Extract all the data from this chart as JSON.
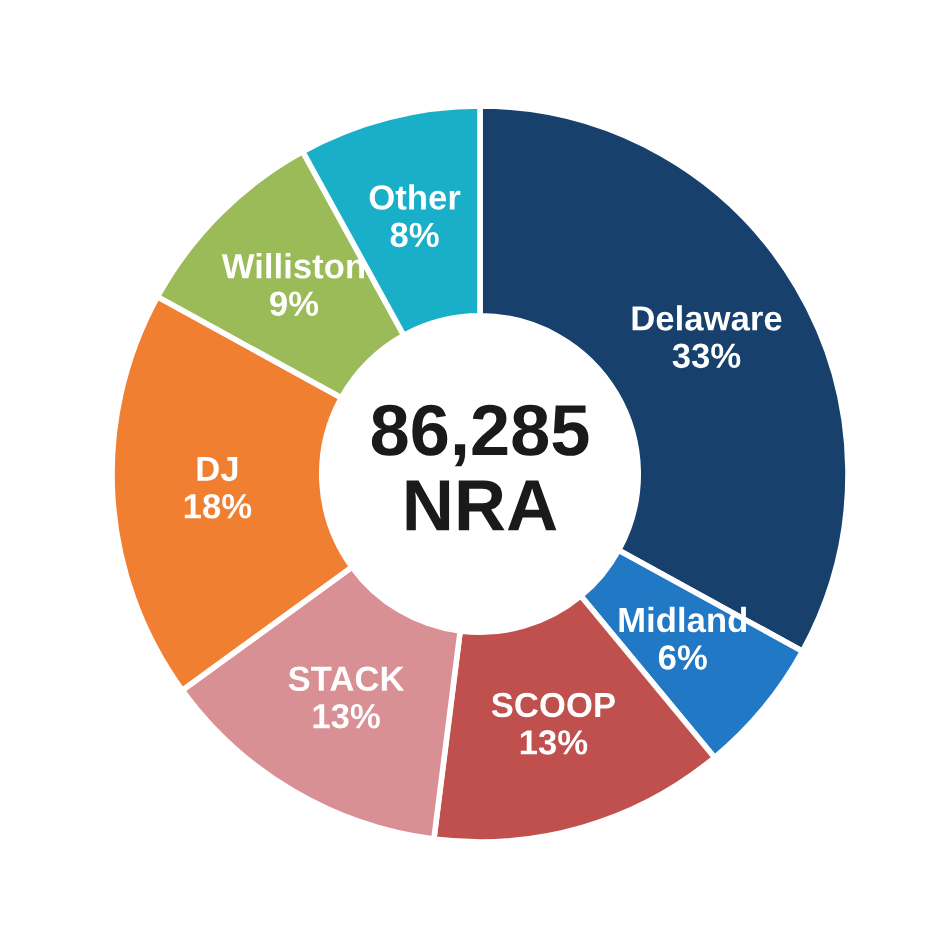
{
  "chart_data": {
    "type": "donut",
    "categories": [
      "Delaware",
      "Midland",
      "SCOOP",
      "STACK",
      "DJ",
      "Williston",
      "Other"
    ],
    "values": [
      33,
      6,
      13,
      13,
      18,
      9,
      8
    ],
    "value_labels": [
      "33%",
      "6%",
      "13%",
      "13%",
      "18%",
      "9%",
      "8%"
    ],
    "colors": [
      "#17406d",
      "#2178c4",
      "#c0504d",
      "#d99094",
      "#f07f32",
      "#9bbb59",
      "#1aafc8"
    ],
    "annotations": [
      "86,285",
      "NRA"
    ],
    "legend": false
  }
}
